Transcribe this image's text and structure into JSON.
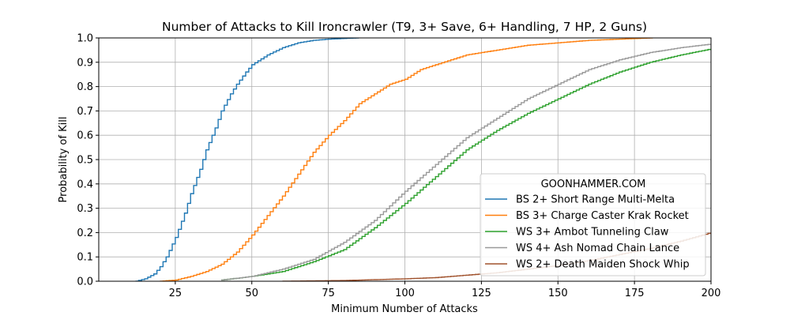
{
  "chart_data": {
    "type": "line",
    "subtype": "step-cdf",
    "title": "Number of Attacks to Kill Ironcrawler (T9, 3+ Save, 6+ Handling, 7 HP, 2 Guns)",
    "xlabel": "Minimum Number of Attacks",
    "ylabel": "Probability of Kill",
    "xlim": [
      0,
      200
    ],
    "ylim": [
      0.0,
      1.0
    ],
    "xticks": [
      25,
      50,
      75,
      100,
      125,
      150,
      175,
      200
    ],
    "yticks": [
      0.0,
      0.1,
      0.2,
      0.3,
      0.4,
      0.5,
      0.6,
      0.7,
      0.8,
      0.9,
      1.0
    ],
    "xtick_labels": [
      "25",
      "50",
      "75",
      "100",
      "125",
      "150",
      "175",
      "200"
    ],
    "ytick_labels": [
      "0.0",
      "0.1",
      "0.2",
      "0.3",
      "0.4",
      "0.5",
      "0.6",
      "0.7",
      "0.8",
      "0.9",
      "1.0"
    ],
    "grid": true,
    "legend_title": "GOONHAMMER.COM",
    "legend_position": "lower right",
    "series": [
      {
        "name": "BS 2+ Short Range Multi-Melta",
        "color": "#1f77b4",
        "x": [
          12,
          15,
          18,
          20,
          22,
          25,
          28,
          30,
          33,
          35,
          38,
          40,
          43,
          45,
          48,
          50,
          55,
          60,
          65,
          70,
          75,
          80,
          84
        ],
        "y": [
          0.0,
          0.01,
          0.03,
          0.06,
          0.1,
          0.18,
          0.28,
          0.36,
          0.46,
          0.54,
          0.63,
          0.7,
          0.77,
          0.81,
          0.86,
          0.89,
          0.93,
          0.96,
          0.98,
          0.99,
          0.995,
          0.998,
          1.0
        ]
      },
      {
        "name": "BS 3+ Charge Caster Krak Rocket",
        "color": "#ff7f0e",
        "x": [
          20,
          25,
          30,
          35,
          40,
          45,
          50,
          55,
          60,
          65,
          70,
          75,
          80,
          85,
          90,
          95,
          100,
          105,
          110,
          115,
          120,
          125,
          130,
          140,
          150,
          160,
          170,
          180
        ],
        "y": [
          0.0,
          0.005,
          0.02,
          0.04,
          0.07,
          0.12,
          0.19,
          0.27,
          0.35,
          0.44,
          0.53,
          0.6,
          0.66,
          0.73,
          0.77,
          0.81,
          0.83,
          0.87,
          0.89,
          0.91,
          0.93,
          0.94,
          0.95,
          0.97,
          0.98,
          0.99,
          0.995,
          1.0
        ]
      },
      {
        "name": "WS 3+ Ambot Tunneling Claw",
        "color": "#2ca02c",
        "x": [
          40,
          50,
          60,
          70,
          80,
          90,
          100,
          110,
          120,
          130,
          140,
          150,
          160,
          170,
          180,
          190,
          200
        ],
        "y": [
          0.005,
          0.02,
          0.04,
          0.08,
          0.13,
          0.22,
          0.32,
          0.43,
          0.54,
          0.62,
          0.69,
          0.75,
          0.81,
          0.86,
          0.9,
          0.93,
          0.955
        ]
      },
      {
        "name": "WS 4+ Ash Nomad Chain Lance",
        "color": "#999999",
        "x": [
          40,
          50,
          60,
          70,
          80,
          90,
          100,
          110,
          120,
          130,
          140,
          150,
          160,
          170,
          180,
          190,
          200
        ],
        "y": [
          0.005,
          0.02,
          0.05,
          0.09,
          0.16,
          0.25,
          0.37,
          0.48,
          0.59,
          0.67,
          0.75,
          0.81,
          0.87,
          0.91,
          0.94,
          0.96,
          0.975
        ]
      },
      {
        "name": "WS 2+ Death Maiden Shock Whip",
        "color": "#a0522d",
        "x": [
          60,
          80,
          100,
          110,
          120,
          130,
          140,
          150,
          160,
          170,
          180,
          190,
          200
        ],
        "y": [
          0.0,
          0.003,
          0.01,
          0.015,
          0.025,
          0.035,
          0.05,
          0.065,
          0.085,
          0.11,
          0.135,
          0.165,
          0.2
        ]
      }
    ]
  }
}
